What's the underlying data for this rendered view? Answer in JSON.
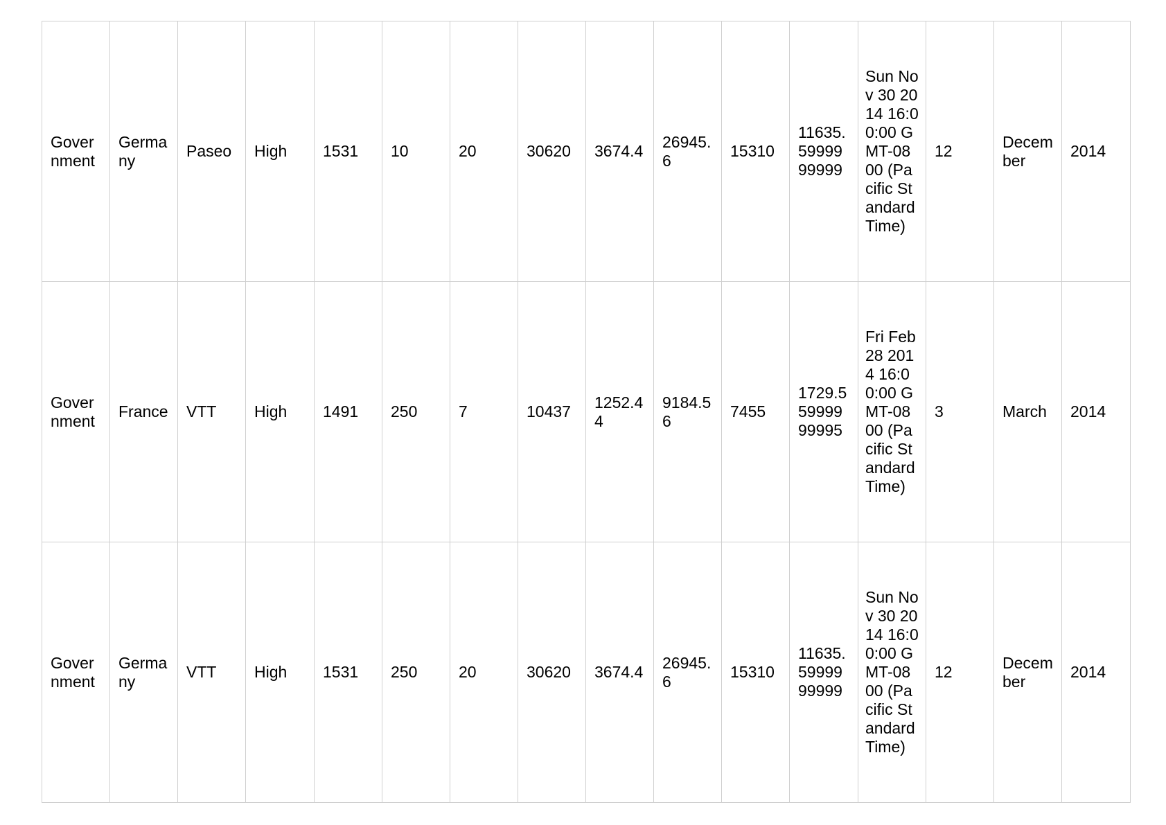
{
  "table": {
    "rows": [
      {
        "cells": [
          "Government",
          "Germany",
          "Paseo",
          "High",
          "1531",
          "10",
          "20",
          "30620",
          "3674.4",
          "26945.6",
          "15310",
          "11635.5999999999",
          "Sun Nov 30 2014 16:00:00 GMT-0800 (Pacific Standard Time)",
          "12",
          "December",
          "2014"
        ]
      },
      {
        "cells": [
          "Government",
          "France",
          "VTT",
          "High",
          "1491",
          "250",
          "7",
          "10437",
          "1252.44",
          "9184.56",
          "7455",
          "1729.55999999995",
          "Fri Feb 28 2014 16:00:00 GMT-0800 (Pacific Standard Time)",
          "3",
          "March",
          "2014"
        ]
      },
      {
        "cells": [
          "Government",
          "Germany",
          "VTT",
          "High",
          "1531",
          "250",
          "20",
          "30620",
          "3674.4",
          "26945.6",
          "15310",
          "11635.5999999999",
          "Sun Nov 30 2014 16:00:00 GMT-0800 (Pacific Standard Time)",
          "12",
          "December",
          "2014"
        ]
      }
    ]
  }
}
